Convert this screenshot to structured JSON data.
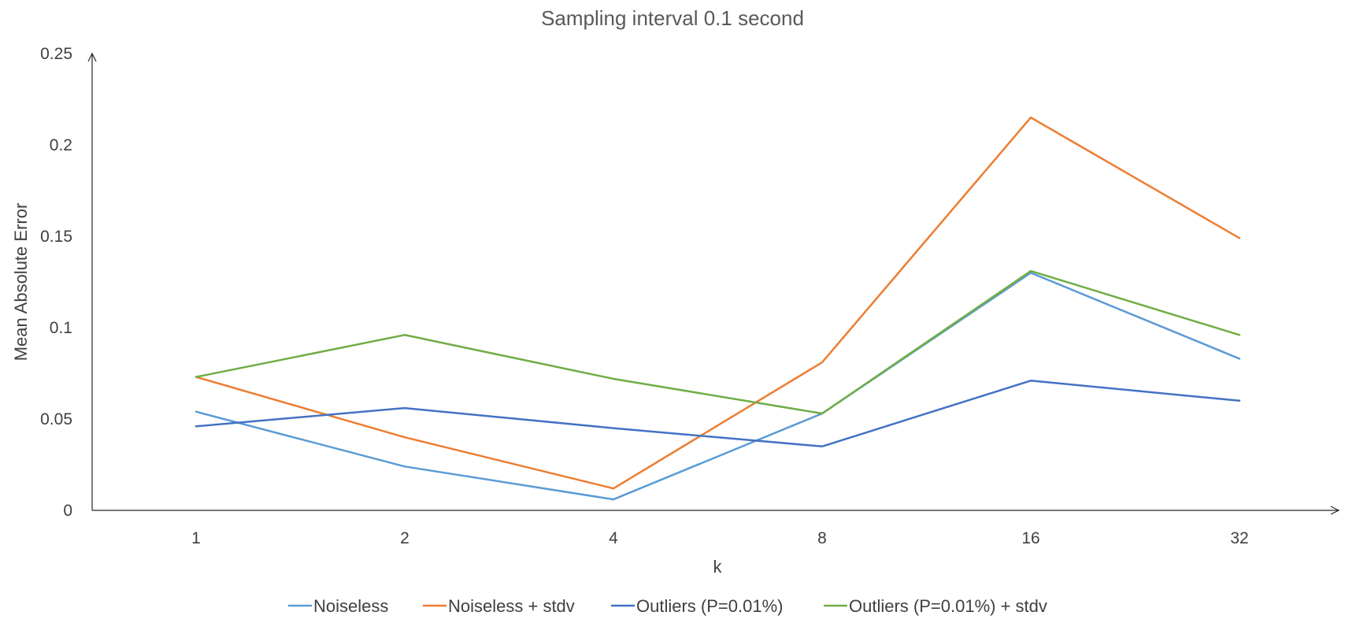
{
  "chart_data": {
    "type": "line",
    "title": "Sampling interval 0.1 second",
    "xlabel": "k",
    "ylabel": "Mean Absolute Error",
    "categories": [
      "1",
      "2",
      "4",
      "8",
      "16",
      "32"
    ],
    "ylim": [
      0,
      0.25
    ],
    "yticks": [
      0,
      0.05,
      0.1,
      0.15,
      0.2,
      0.25
    ],
    "ytick_labels": [
      "0",
      "0.05",
      "0.1",
      "0.15",
      "0.2",
      "0.25"
    ],
    "grid": false,
    "legend_position": "bottom",
    "series": [
      {
        "name": "Noiseless",
        "color": "#5B9BD5",
        "values": [
          0.054,
          0.024,
          0.006,
          0.053,
          0.13,
          0.083
        ]
      },
      {
        "name": "Noiseless + stdv",
        "color": "#ED7D31",
        "values": [
          0.073,
          0.04,
          0.012,
          0.081,
          0.215,
          0.149
        ]
      },
      {
        "name": "Outliers (P=0.01%)",
        "color": "#4472C4",
        "values": [
          0.046,
          0.056,
          0.045,
          0.035,
          0.071,
          0.06
        ]
      },
      {
        "name": "Outliers (P=0.01%) + stdv",
        "color": "#70AD47",
        "values": [
          0.073,
          0.096,
          0.072,
          0.053,
          0.131,
          0.096
        ]
      }
    ]
  }
}
